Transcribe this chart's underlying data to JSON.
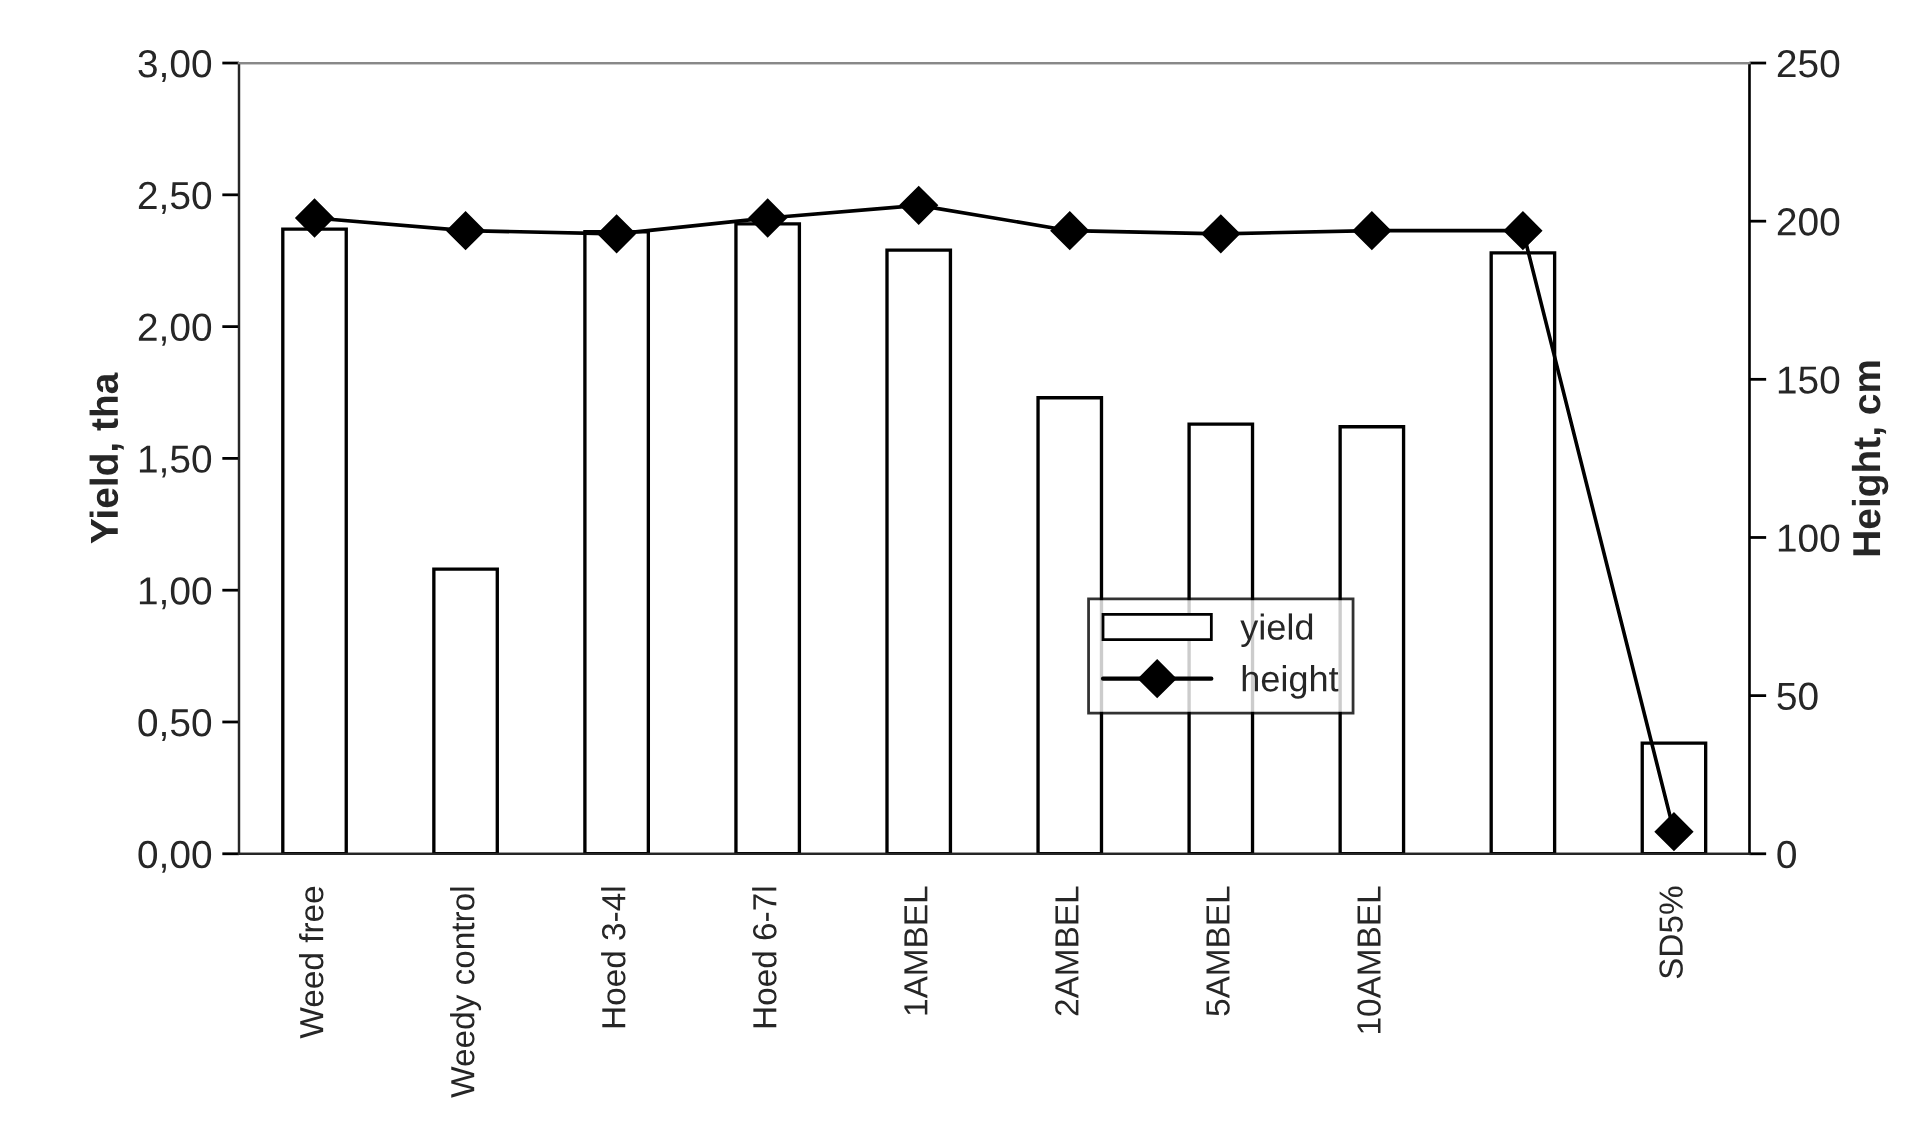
{
  "chart_data": {
    "type": "bar",
    "ylabel": "Yield, tha",
    "y2label": "Height, cm",
    "categories": [
      "Weed free",
      "Weedy control",
      "Hoed 3-4l",
      "Hoed 6-7l",
      "1AMBEL",
      "2AMBEL",
      "5AMBEL",
      "10AMBEL",
      null,
      "SD5%"
    ],
    "series": [
      {
        "name": "yield",
        "color": "#ffffff",
        "values": [
          2.37,
          1.08,
          2.36,
          2.39,
          2.29,
          1.73,
          1.63,
          1.62,
          2.28,
          0.42
        ]
      },
      {
        "name": "height",
        "type": "line",
        "axis": "y2",
        "color": "#000000",
        "marker": "diamond",
        "values": [
          201,
          197,
          196,
          201,
          205,
          197,
          196,
          197,
          197,
          7
        ]
      }
    ],
    "ylim": [
      0,
      3
    ],
    "yticks": [
      {
        "value": 0,
        "label": "0,00"
      },
      {
        "value": 0.5,
        "label": "0,50"
      },
      {
        "value": 1,
        "label": "1,00"
      },
      {
        "value": 1.5,
        "label": "1,50"
      },
      {
        "value": 2,
        "label": "2,00"
      },
      {
        "value": 2.5,
        "label": "2,50"
      },
      {
        "value": 3,
        "label": "3,00"
      }
    ],
    "y2lim": [
      0,
      250
    ],
    "y2ticks": [
      0,
      50,
      100,
      150,
      200,
      250
    ],
    "legend": "center",
    "grid": false
  }
}
